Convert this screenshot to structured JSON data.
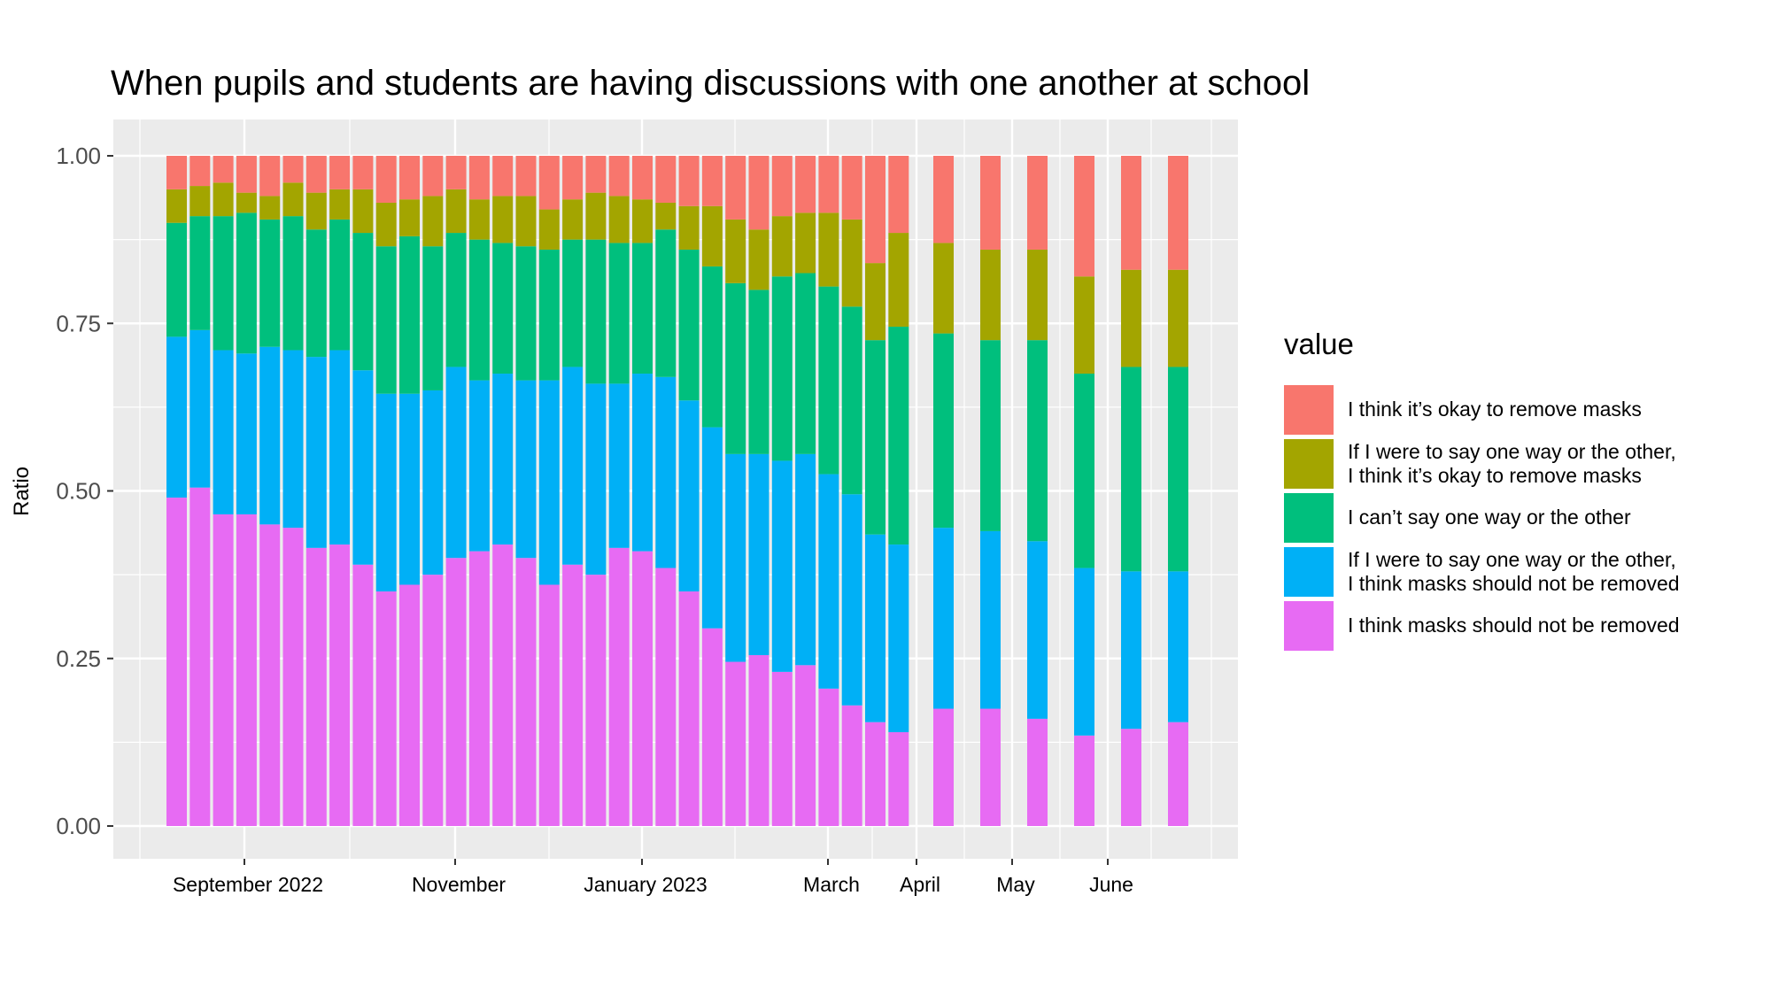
{
  "chart_data": {
    "type": "bar",
    "stacked": true,
    "title": "When pupils and students are having discussions with one another at school",
    "xlabel": "",
    "ylabel": "Ratio",
    "ylim": [
      0,
      1
    ],
    "yticks": [
      "0.00",
      "0.25",
      "0.50",
      "0.75",
      "1.00"
    ],
    "grid": true,
    "legend_placement": "right",
    "legend_title": "value",
    "x_ticks": [
      "September 2022",
      "November",
      "January 2023",
      "March",
      "April",
      "May",
      "June"
    ],
    "series": [
      {
        "name": "I think it’s okay to remove masks",
        "color": "#F8766D",
        "values": [
          0.05,
          0.045,
          0.04,
          0.055,
          0.06,
          0.04,
          0.055,
          0.05,
          0.05,
          0.07,
          0.065,
          0.06,
          0.05,
          0.065,
          0.06,
          0.06,
          0.08,
          0.065,
          0.055,
          0.06,
          0.065,
          0.07,
          0.075,
          0.075,
          0.095,
          0.11,
          0.09,
          0.085,
          0.085,
          0.095,
          0.16,
          0.115,
          0.13,
          0.14,
          0.14,
          0.18,
          0.17,
          0.17
        ]
      },
      {
        "name": "If I were to say one way or the other,\nI think it’s okay to remove  masks",
        "color": "#A3A500",
        "values": [
          0.05,
          0.045,
          0.05,
          0.03,
          0.035,
          0.05,
          0.055,
          0.045,
          0.065,
          0.065,
          0.055,
          0.075,
          0.065,
          0.06,
          0.07,
          0.075,
          0.06,
          0.06,
          0.07,
          0.07,
          0.065,
          0.04,
          0.065,
          0.09,
          0.095,
          0.09,
          0.09,
          0.09,
          0.11,
          0.13,
          0.115,
          0.14,
          0.135,
          0.135,
          0.135,
          0.145,
          0.145,
          0.145
        ]
      },
      {
        "name": "I can’t say one way or the other",
        "color": "#00BF7D",
        "values": [
          0.17,
          0.17,
          0.2,
          0.21,
          0.19,
          0.2,
          0.19,
          0.195,
          0.205,
          0.22,
          0.235,
          0.215,
          0.2,
          0.21,
          0.195,
          0.2,
          0.195,
          0.19,
          0.215,
          0.21,
          0.195,
          0.22,
          0.225,
          0.24,
          0.255,
          0.245,
          0.275,
          0.27,
          0.28,
          0.28,
          0.29,
          0.325,
          0.29,
          0.285,
          0.3,
          0.29,
          0.305,
          0.305
        ]
      },
      {
        "name": "If I were to say one way or the other,\nI think masks should not be removed",
        "color": "#00B0F6",
        "values": [
          0.24,
          0.235,
          0.245,
          0.24,
          0.265,
          0.265,
          0.285,
          0.29,
          0.29,
          0.295,
          0.285,
          0.275,
          0.285,
          0.255,
          0.255,
          0.265,
          0.305,
          0.295,
          0.285,
          0.245,
          0.265,
          0.285,
          0.285,
          0.3,
          0.31,
          0.3,
          0.315,
          0.315,
          0.32,
          0.315,
          0.28,
          0.28,
          0.27,
          0.265,
          0.265,
          0.25,
          0.235,
          0.225
        ]
      },
      {
        "name": "I think masks should not be removed",
        "color": "#E76BF3",
        "values": [
          0.49,
          0.505,
          0.465,
          0.465,
          0.45,
          0.445,
          0.415,
          0.42,
          0.39,
          0.35,
          0.36,
          0.375,
          0.4,
          0.41,
          0.42,
          0.4,
          0.36,
          0.39,
          0.375,
          0.415,
          0.41,
          0.385,
          0.35,
          0.295,
          0.245,
          0.255,
          0.23,
          0.24,
          0.205,
          0.18,
          0.155,
          0.14,
          0.175,
          0.175,
          0.16,
          0.135,
          0.145,
          0.155
        ]
      }
    ]
  }
}
